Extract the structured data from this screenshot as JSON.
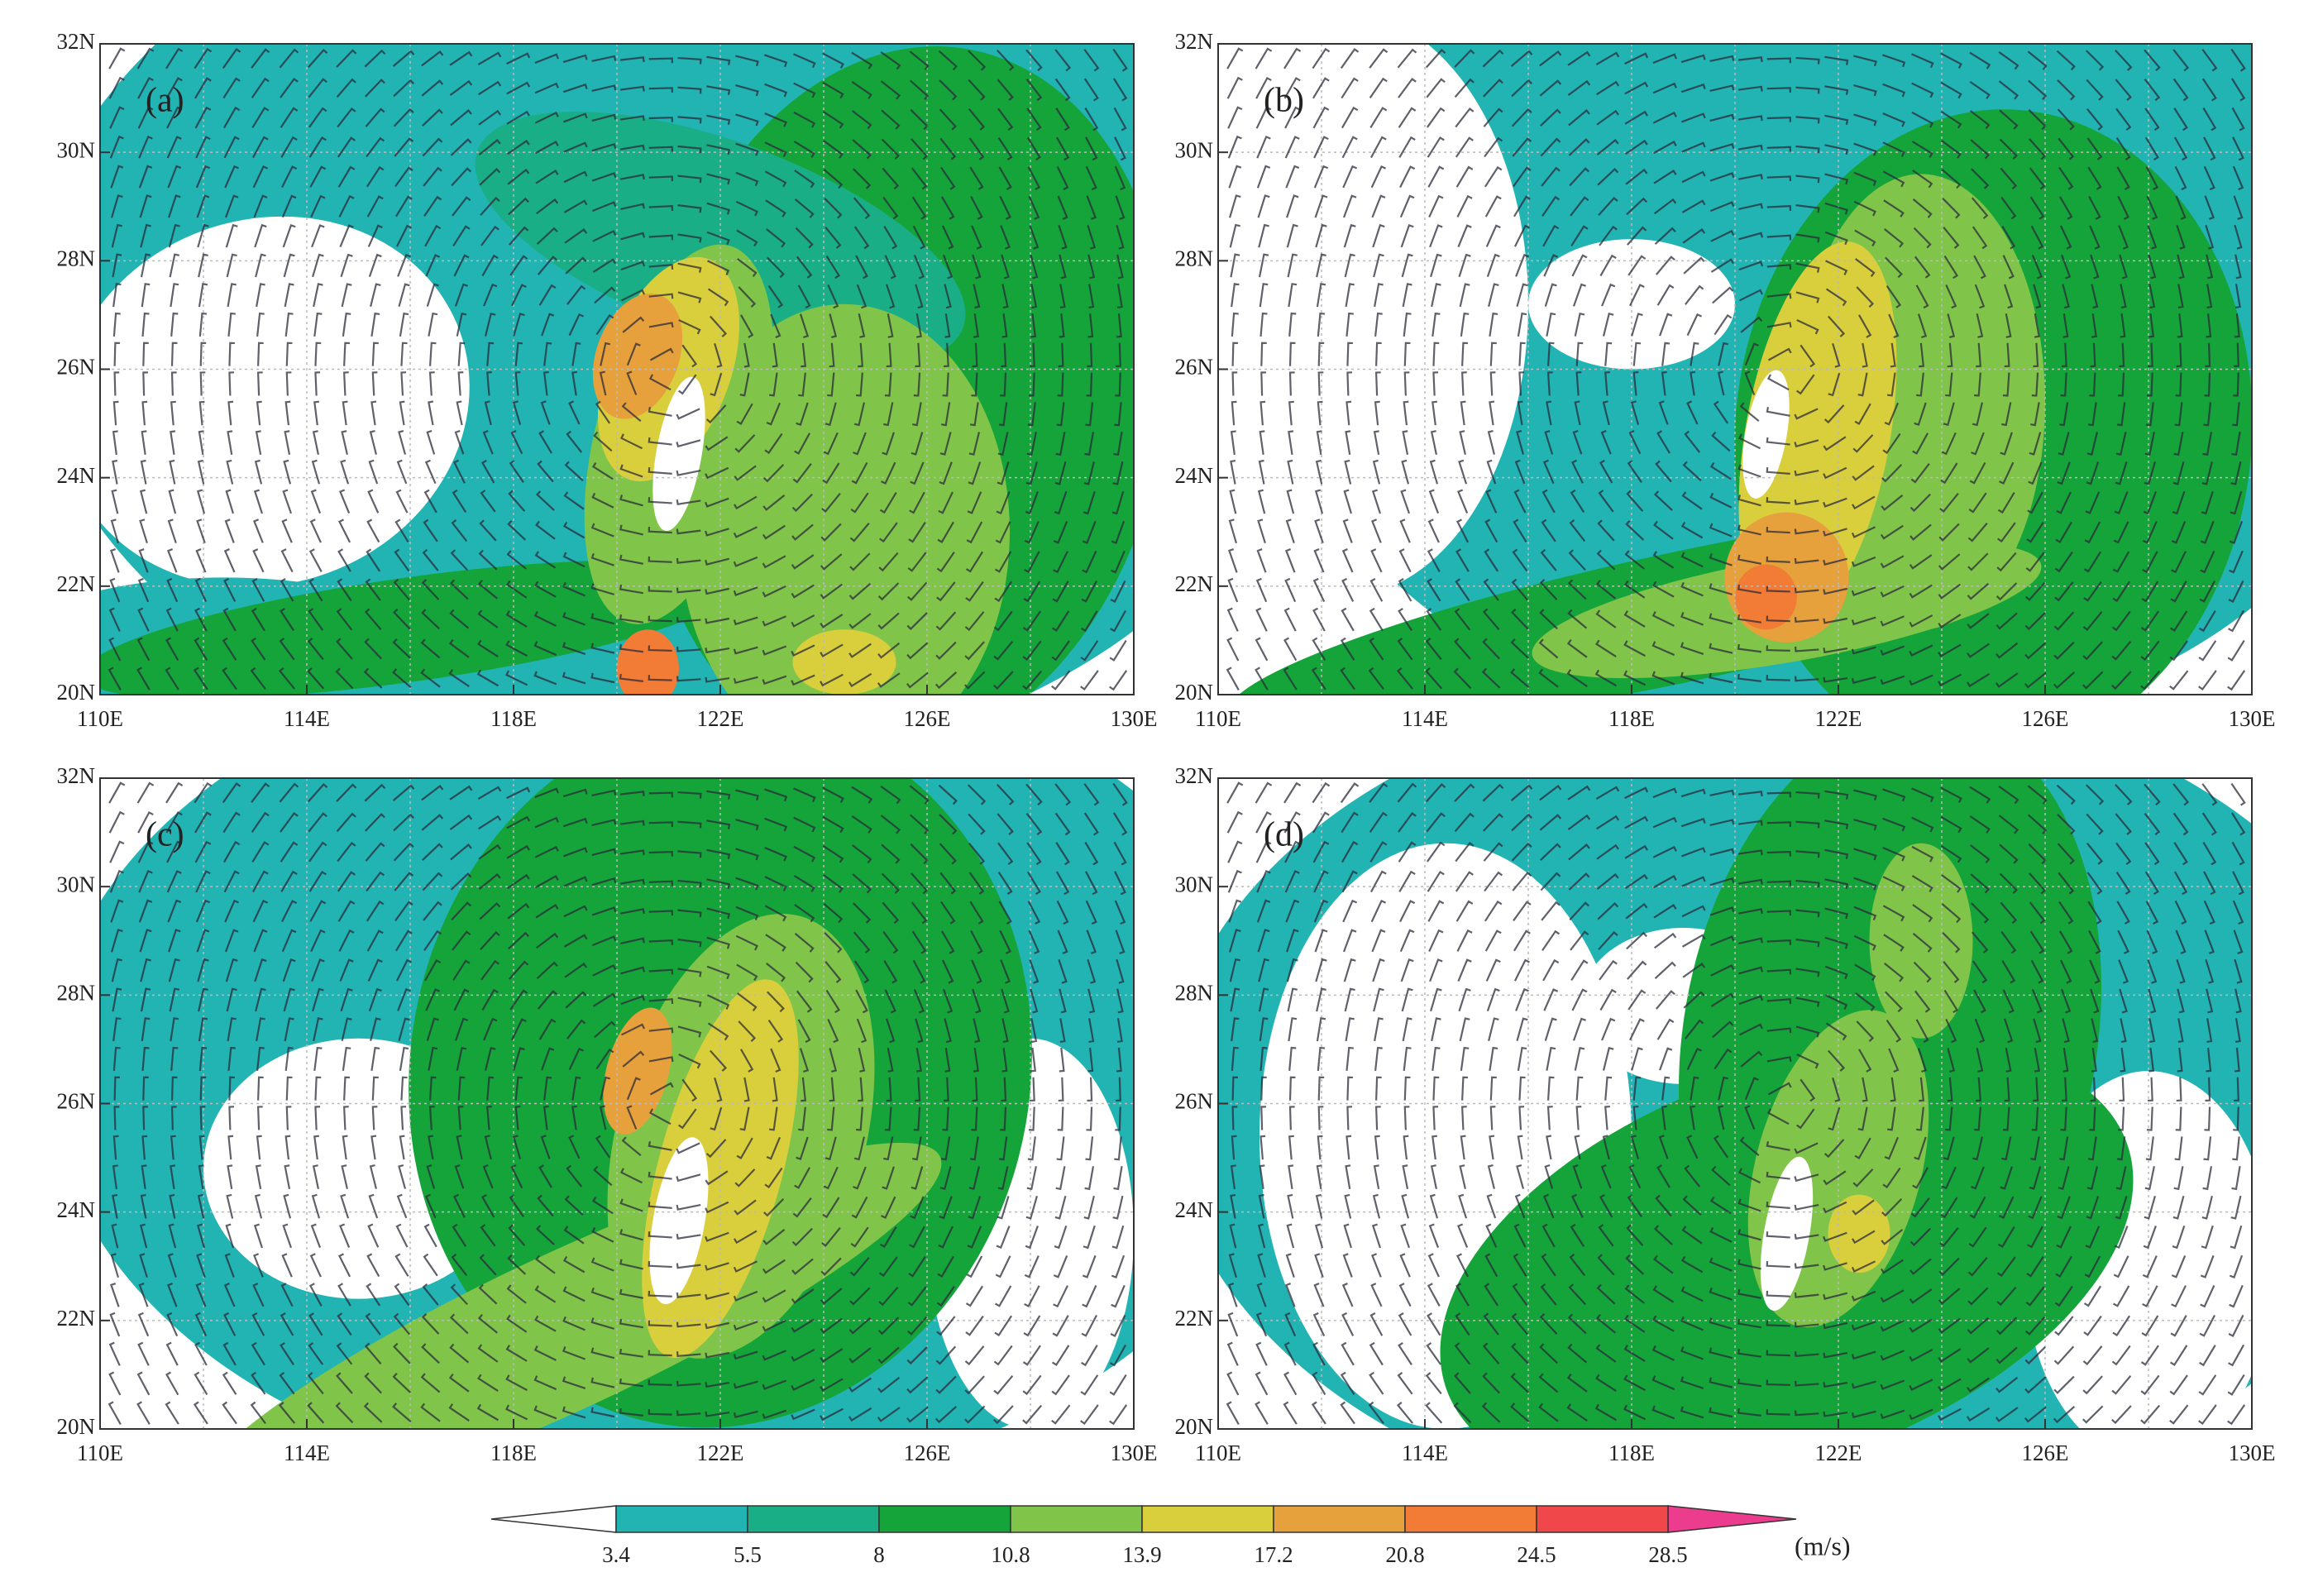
{
  "panels": [
    {
      "label": "(a)"
    },
    {
      "label": "(b)"
    },
    {
      "label": "(c)"
    },
    {
      "label": "(d)"
    }
  ],
  "y_tick_labels": [
    "32N",
    "30N",
    "28N",
    "26N",
    "24N",
    "22N",
    "20N"
  ],
  "x_tick_labels": [
    "110E",
    "114E",
    "118E",
    "122E",
    "126E",
    "130E"
  ],
  "colorbar": {
    "levels": [
      3.4,
      5.5,
      8.0,
      10.8,
      13.9,
      17.2,
      20.8,
      24.5,
      28.5
    ],
    "colors": [
      "#ffffff",
      "#22b3b3",
      "#1aae86",
      "#15a43a",
      "#80c54a",
      "#d9cf3d",
      "#e6a13c",
      "#f27b36",
      "#f0474a",
      "#ec3c8e"
    ],
    "unit": "(m/s)"
  }
}
